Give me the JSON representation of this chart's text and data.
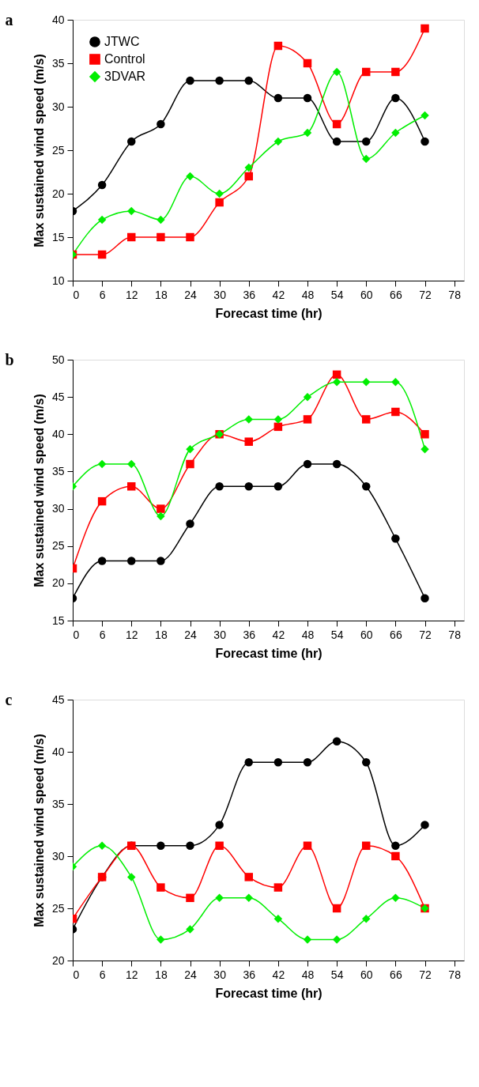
{
  "chart_data": [
    {
      "type": "line",
      "title": "a",
      "xlabel": "Forecast time (hr)",
      "ylabel": "Max sustained wind speed (m/s)",
      "x": [
        0,
        6,
        12,
        18,
        24,
        30,
        36,
        42,
        48,
        54,
        60,
        66,
        72
      ],
      "xlim": [
        0,
        80
      ],
      "xticks": [
        0,
        6,
        12,
        18,
        24,
        30,
        36,
        42,
        48,
        54,
        60,
        66,
        72,
        78
      ],
      "ylim": [
        10,
        40
      ],
      "yticks": [
        10,
        15,
        20,
        25,
        30,
        35,
        40
      ],
      "grid": false,
      "legend": "top left",
      "line_style": "solid",
      "series": [
        {
          "name": "JTWC",
          "color": "#000000",
          "marker": "circle",
          "values": [
            18,
            21,
            26,
            28,
            33,
            33,
            33,
            31,
            31,
            26,
            26,
            31,
            26
          ]
        },
        {
          "name": "Control",
          "color": "#ff0000",
          "marker": "square",
          "values": [
            13,
            13,
            15,
            15,
            15,
            19,
            22,
            37,
            35,
            28,
            34,
            34,
            39
          ]
        },
        {
          "name": "3DVAR",
          "color": "#00ee00",
          "marker": "diamond",
          "values": [
            13,
            17,
            18,
            17,
            22,
            20,
            23,
            26,
            27,
            34,
            24,
            27,
            29
          ]
        }
      ]
    },
    {
      "type": "line",
      "title": "b",
      "xlabel": "Forecast time (hr)",
      "ylabel": "Max sustained wind speed (m/s)",
      "x": [
        0,
        6,
        12,
        18,
        24,
        30,
        36,
        42,
        48,
        54,
        60,
        66,
        72
      ],
      "xlim": [
        0,
        80
      ],
      "xticks": [
        0,
        6,
        12,
        18,
        24,
        30,
        36,
        42,
        48,
        54,
        60,
        66,
        72,
        78
      ],
      "ylim": [
        15,
        50
      ],
      "yticks": [
        15,
        20,
        25,
        30,
        35,
        40,
        45,
        50
      ],
      "grid": false,
      "legend": "top left",
      "line_style": "solid",
      "series": [
        {
          "name": "JTWC",
          "color": "#000000",
          "marker": "circle",
          "values": [
            18,
            23,
            23,
            23,
            28,
            33,
            33,
            33,
            36,
            36,
            33,
            26,
            18
          ]
        },
        {
          "name": "Control",
          "color": "#ff0000",
          "marker": "square",
          "values": [
            22,
            31,
            33,
            30,
            36,
            40,
            39,
            41,
            42,
            48,
            42,
            43,
            40
          ]
        },
        {
          "name": "3DVAR",
          "color": "#00ee00",
          "marker": "diamond",
          "values": [
            33,
            36,
            36,
            29,
            38,
            40,
            42,
            42,
            45,
            47,
            47,
            47,
            38
          ]
        }
      ]
    },
    {
      "type": "line",
      "title": "c",
      "xlabel": "Forecast time (hr)",
      "ylabel": "Max sustained wind speed (m/s)",
      "x": [
        0,
        6,
        12,
        18,
        24,
        30,
        36,
        42,
        48,
        54,
        60,
        66,
        72
      ],
      "xlim": [
        0,
        80
      ],
      "xticks": [
        0,
        6,
        12,
        18,
        24,
        30,
        36,
        42,
        48,
        54,
        60,
        66,
        72,
        78
      ],
      "ylim": [
        20,
        45
      ],
      "yticks": [
        20,
        25,
        30,
        35,
        40,
        45
      ],
      "grid": false,
      "legend": "top left",
      "line_style": "solid",
      "series": [
        {
          "name": "JTWC",
          "color": "#000000",
          "marker": "circle",
          "values": [
            23,
            28,
            31,
            31,
            31,
            33,
            39,
            39,
            39,
            41,
            39,
            31,
            33
          ]
        },
        {
          "name": "Control",
          "color": "#ff0000",
          "marker": "square",
          "values": [
            24,
            28,
            31,
            27,
            26,
            31,
            28,
            27,
            31,
            25,
            31,
            30,
            25
          ]
        },
        {
          "name": "3DVAR",
          "color": "#00ee00",
          "marker": "diamond",
          "values": [
            29,
            31,
            28,
            22,
            23,
            26,
            26,
            24,
            22,
            22,
            24,
            26,
            25
          ]
        }
      ]
    }
  ]
}
